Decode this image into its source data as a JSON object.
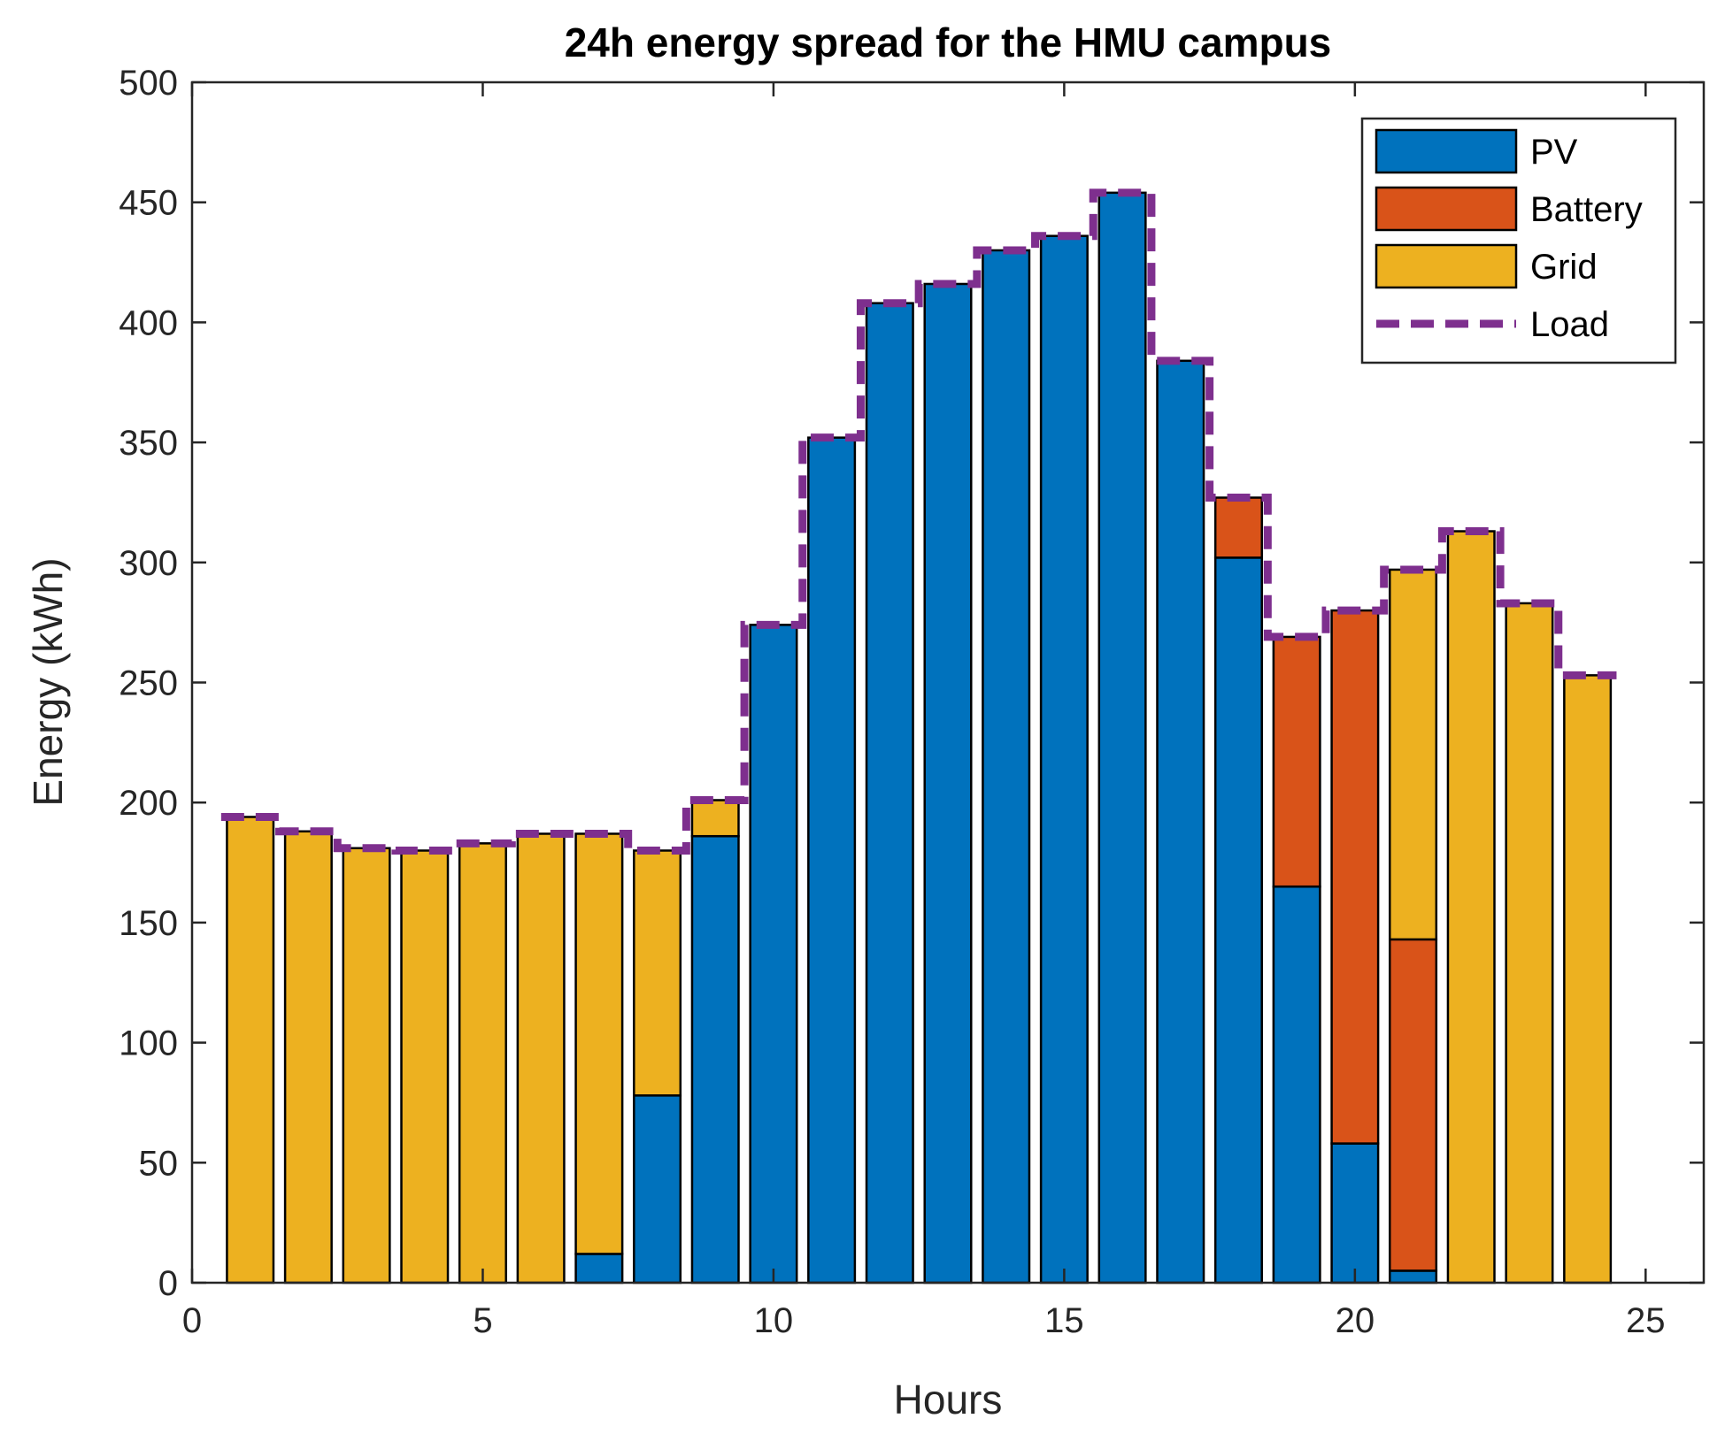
{
  "chart_data": {
    "type": "bar",
    "stacked": true,
    "title": "24h energy spread for the HMU campus",
    "xlabel": "Hours",
    "ylabel": "Energy (kWh)",
    "xlim": [
      0,
      26
    ],
    "ylim": [
      0,
      500
    ],
    "xticks": [
      0,
      5,
      10,
      15,
      20,
      25
    ],
    "yticks": [
      0,
      50,
      100,
      150,
      200,
      250,
      300,
      350,
      400,
      450,
      500
    ],
    "x": [
      1,
      2,
      3,
      4,
      5,
      6,
      7,
      8,
      9,
      10,
      11,
      12,
      13,
      14,
      15,
      16,
      17,
      18,
      19,
      20,
      21,
      22,
      23,
      24
    ],
    "legend_position": "top-right",
    "series": [
      {
        "name": "PV",
        "color": "#0072BD",
        "values": [
          0,
          0,
          0,
          0,
          0,
          0,
          12,
          78,
          186,
          274,
          352,
          408,
          416,
          430,
          436,
          454,
          384,
          302,
          165,
          58,
          5,
          0,
          0,
          0
        ]
      },
      {
        "name": "Battery",
        "color": "#D95319",
        "values": [
          0,
          0,
          0,
          0,
          0,
          0,
          0,
          0,
          0,
          0,
          0,
          0,
          0,
          0,
          0,
          0,
          0,
          25,
          104,
          222,
          138,
          0,
          0,
          0
        ]
      },
      {
        "name": "Grid",
        "color": "#EDB120",
        "values": [
          194,
          188,
          181,
          180,
          183,
          187,
          175,
          102,
          15,
          0,
          0,
          0,
          0,
          0,
          0,
          0,
          0,
          0,
          0,
          0,
          154,
          313,
          283,
          253
        ]
      }
    ],
    "load": {
      "name": "Load",
      "color": "#7E2F8E",
      "style": "dashed",
      "values": [
        194,
        188,
        181,
        180,
        183,
        187,
        187,
        180,
        201,
        274,
        352,
        408,
        416,
        430,
        436,
        454,
        384,
        327,
        269,
        280,
        297,
        313,
        283,
        253
      ]
    }
  }
}
